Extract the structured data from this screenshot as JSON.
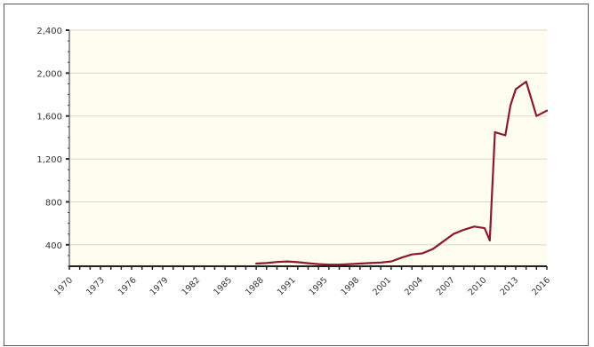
{
  "chart_data": {
    "type": "line",
    "title": "",
    "xlabel": "",
    "ylabel": "",
    "xlim": [
      1970,
      2016
    ],
    "ylim": [
      200,
      2400
    ],
    "y_ticks": [
      400,
      800,
      1200,
      1600,
      2000,
      2400
    ],
    "y_tick_labels": [
      "400",
      "800",
      "1,200",
      "1,600",
      "2,000",
      "2,400"
    ],
    "x_tick_labels": [
      "1970",
      "1973",
      "1976",
      "1979",
      "1982",
      "1985",
      "1988",
      "1991",
      "1995",
      "1998",
      "2001",
      "2004",
      "2007",
      "2010",
      "2013",
      "2016"
    ],
    "grid": true,
    "legend": "none",
    "colors": {
      "line": "#8b1a2b",
      "plot_background": "#fefdf0",
      "grid": "#d8d8c8"
    },
    "series": [
      {
        "x": [
          1988,
          1989,
          1990,
          1991,
          1992,
          1993,
          1994,
          1995,
          1996,
          1997,
          1998,
          1999,
          2000,
          2001,
          2002,
          2003,
          2004,
          2005,
          2006,
          2007,
          2008,
          2009,
          2010,
          2010.5,
          2011,
          2012,
          2012.5,
          2013,
          2014,
          2015,
          2016
        ],
        "y": [
          225,
          230,
          240,
          245,
          238,
          228,
          220,
          215,
          215,
          220,
          225,
          230,
          235,
          245,
          280,
          310,
          320,
          360,
          430,
          500,
          540,
          570,
          555,
          440,
          1450,
          1420,
          1700,
          1850,
          1920,
          1600,
          1650
        ]
      }
    ]
  }
}
